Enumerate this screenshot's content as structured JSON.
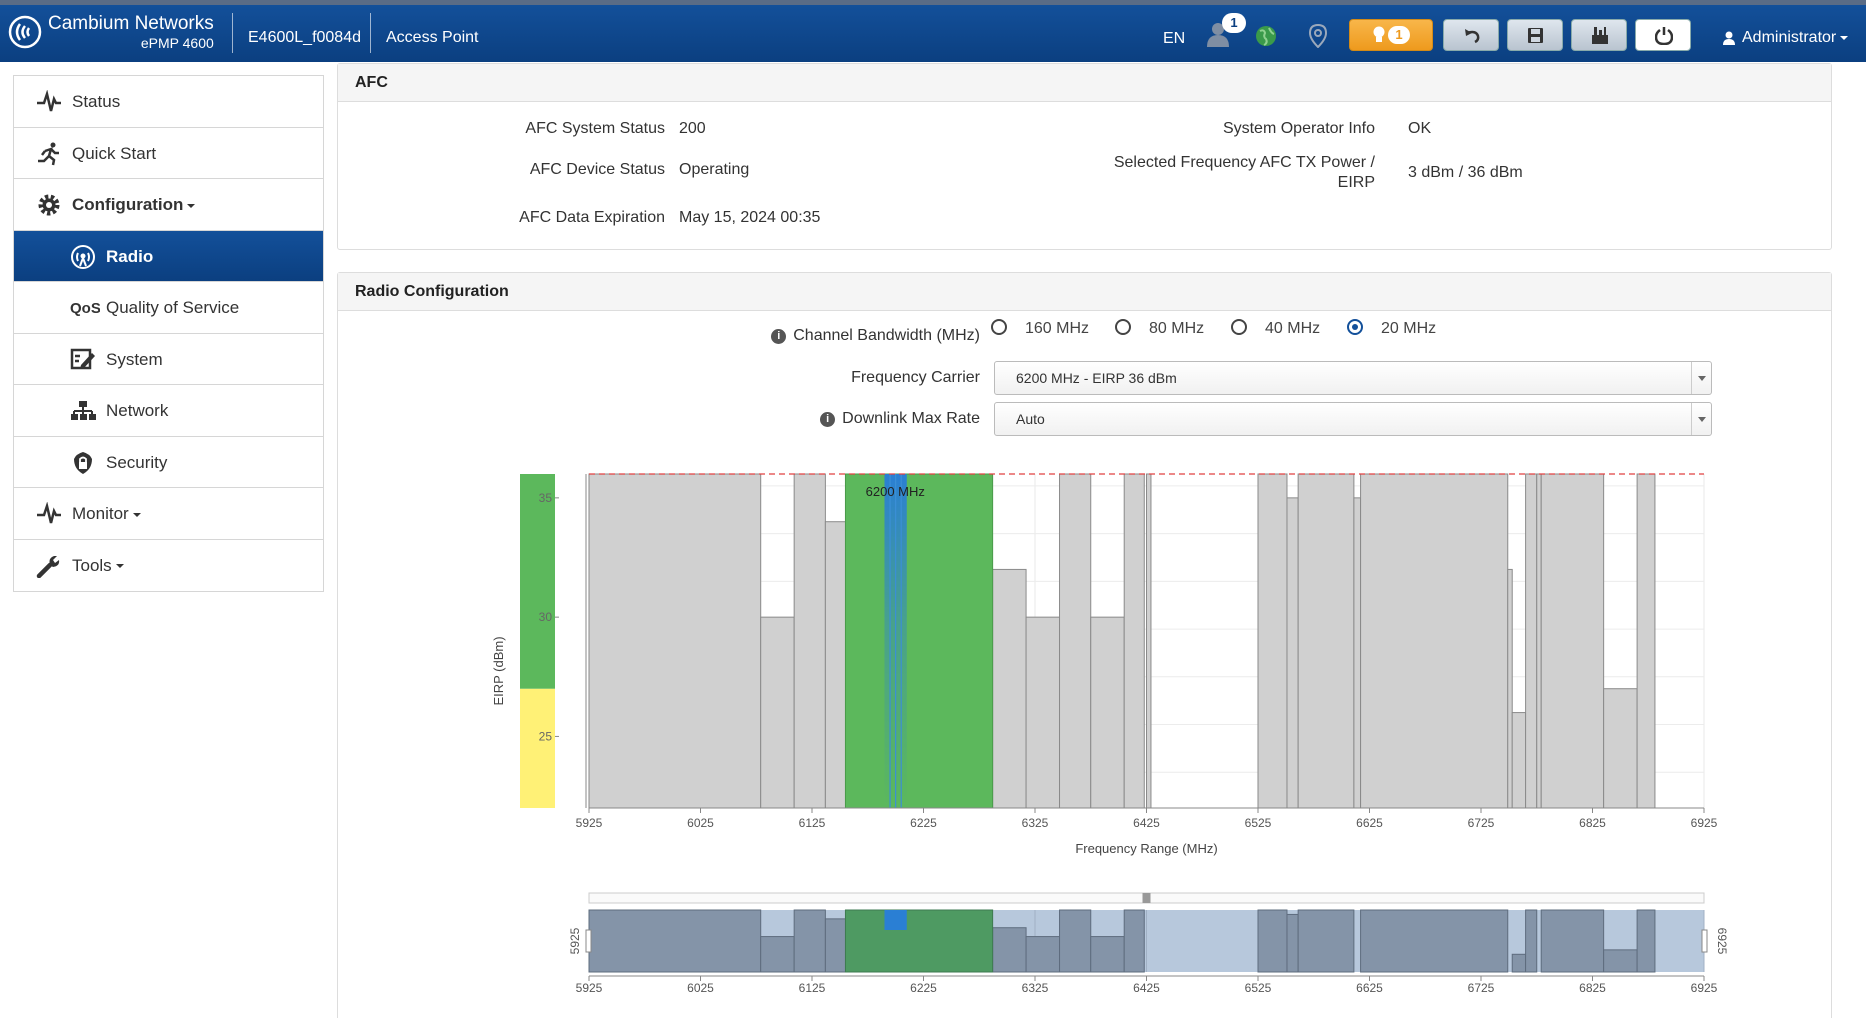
{
  "header": {
    "brand_name": "Cambium Networks",
    "brand_model": "ePMP 4600",
    "device_name": "E4600L_f0084d",
    "device_mode": "Access Point",
    "language": "EN",
    "notification_count": "1",
    "warning_count": "1",
    "user": "Administrator"
  },
  "sidebar": {
    "items": [
      {
        "label": "Status",
        "icon": "pulse-icon"
      },
      {
        "label": "Quick Start",
        "icon": "runner-icon"
      },
      {
        "label": "Configuration",
        "icon": "gear-icon"
      },
      {
        "label": "Radio",
        "icon": "radio-antenna-icon"
      },
      {
        "label": "Quality of Service",
        "icon": "qos-icon"
      },
      {
        "label": "System",
        "icon": "system-icon"
      },
      {
        "label": "Network",
        "icon": "network-icon"
      },
      {
        "label": "Security",
        "icon": "shield-icon"
      },
      {
        "label": "Monitor",
        "icon": "pulse-icon"
      },
      {
        "label": "Tools",
        "icon": "wrench-icon"
      }
    ]
  },
  "afc": {
    "title": "AFC",
    "system_status_label": "AFC System Status",
    "system_status_value": "200",
    "device_status_label": "AFC Device Status",
    "device_status_value": "Operating",
    "expiration_label": "AFC Data Expiration",
    "expiration_value": "May 15, 2024 00:35",
    "operator_label": "System Operator Info",
    "operator_value": "OK",
    "tx_power_label_1": "Selected Frequency AFC TX Power /",
    "tx_power_label_2": "EIRP",
    "tx_power_value": "3 dBm / 36 dBm"
  },
  "radio": {
    "title": "Radio Configuration",
    "bandwidth_label": "Channel Bandwidth (MHz)",
    "bandwidth_options": [
      "160 MHz",
      "80 MHz",
      "40 MHz",
      "20 MHz"
    ],
    "bandwidth_selected": "20 MHz",
    "carrier_label": "Frequency Carrier",
    "carrier_value": "6200 MHz - EIRP 36 dBm",
    "downlink_label": "Downlink Max Rate",
    "downlink_value": "Auto"
  },
  "colors": {
    "brand_blue": "#0b3f80",
    "available_green": "#5cb85c",
    "eirp_yellow": "#fff176",
    "selected_blue": "#2a7fd4",
    "block_gray": "#d0d0d0"
  },
  "chart_data": {
    "type": "bar",
    "xlabel": "Frequency Range (MHz)",
    "ylabel": "EIRP (dBm)",
    "xlim": [
      5925,
      6925
    ],
    "ylim": [
      22,
      36
    ],
    "xticks": [
      5925,
      6025,
      6125,
      6225,
      6325,
      6425,
      6525,
      6625,
      6725,
      6825,
      6925
    ],
    "yticks": [
      25,
      30,
      35
    ],
    "limit_line": 36,
    "selected_label": "6200 MHz",
    "selected_frequency": 6200,
    "available_band": {
      "start": 6155,
      "end": 6287,
      "value": 36
    },
    "eirp_scale": [
      {
        "from": 22,
        "to": 27,
        "color": "#fff176"
      },
      {
        "from": 27,
        "to": 36,
        "color": "#5cb85c"
      }
    ],
    "blocks": [
      {
        "start": 5925,
        "end": 6079,
        "value": 36
      },
      {
        "start": 6079,
        "end": 6109,
        "value": 30
      },
      {
        "start": 6109,
        "end": 6137,
        "value": 36
      },
      {
        "start": 6137,
        "end": 6167,
        "value": 34
      },
      {
        "start": 6287,
        "end": 6317,
        "value": 32
      },
      {
        "start": 6317,
        "end": 6347,
        "value": 30
      },
      {
        "start": 6347,
        "end": 6375,
        "value": 36
      },
      {
        "start": 6375,
        "end": 6405,
        "value": 30
      },
      {
        "start": 6405,
        "end": 6423,
        "value": 36
      },
      {
        "start": 6425,
        "end": 6429,
        "value": 36
      },
      {
        "start": 6525,
        "end": 6551,
        "value": 36
      },
      {
        "start": 6551,
        "end": 6561,
        "value": 35
      },
      {
        "start": 6561,
        "end": 6611,
        "value": 36
      },
      {
        "start": 6611,
        "end": 6617,
        "value": 35
      },
      {
        "start": 6617,
        "end": 6749,
        "value": 36
      },
      {
        "start": 6749,
        "end": 6753,
        "value": 32
      },
      {
        "start": 6753,
        "end": 6765,
        "value": 26
      },
      {
        "start": 6765,
        "end": 6775,
        "value": 36
      },
      {
        "start": 6775,
        "end": 6779,
        "value": 36
      },
      {
        "start": 6779,
        "end": 6835,
        "value": 36
      },
      {
        "start": 6835,
        "end": 6865,
        "value": 27
      },
      {
        "start": 6865,
        "end": 6881,
        "value": 36
      }
    ],
    "overview_blocks": [
      {
        "start": 5925,
        "end": 6079,
        "value": 36
      },
      {
        "start": 6079,
        "end": 6109,
        "value": 30
      },
      {
        "start": 6109,
        "end": 6137,
        "value": 36
      },
      {
        "start": 6137,
        "end": 6167,
        "value": 34
      },
      {
        "start": 6287,
        "end": 6317,
        "value": 32
      },
      {
        "start": 6317,
        "end": 6347,
        "value": 30
      },
      {
        "start": 6347,
        "end": 6375,
        "value": 36
      },
      {
        "start": 6375,
        "end": 6405,
        "value": 30
      },
      {
        "start": 6405,
        "end": 6423,
        "value": 36
      },
      {
        "start": 6525,
        "end": 6551,
        "value": 36
      },
      {
        "start": 6551,
        "end": 6561,
        "value": 35
      },
      {
        "start": 6561,
        "end": 6611,
        "value": 36
      },
      {
        "start": 6617,
        "end": 6749,
        "value": 36
      },
      {
        "start": 6753,
        "end": 6765,
        "value": 26
      },
      {
        "start": 6765,
        "end": 6775,
        "value": 36
      },
      {
        "start": 6779,
        "end": 6835,
        "value": 36
      },
      {
        "start": 6835,
        "end": 6865,
        "value": 27
      },
      {
        "start": 6865,
        "end": 6881,
        "value": 36
      }
    ],
    "range_min_label": "5925",
    "range_max_label": "6925"
  }
}
